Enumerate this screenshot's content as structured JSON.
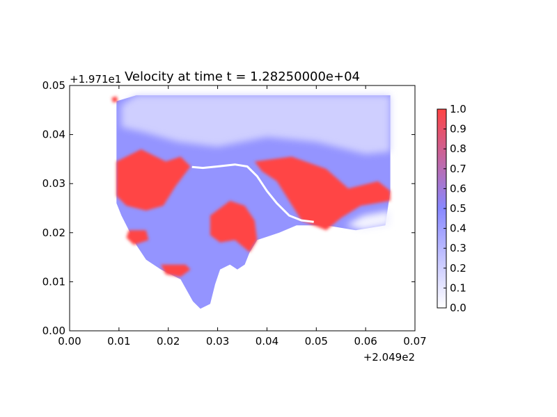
{
  "chart_data": {
    "type": "heatmap",
    "title": "Velocity at time t = 1.28250000e+04",
    "x_offset_label": "+2.049e2",
    "y_offset_label": "+1.971e1",
    "xlim": [
      0.0,
      0.07
    ],
    "ylim": [
      0.0,
      0.05
    ],
    "x_ticks": [
      "0.00",
      "0.01",
      "0.02",
      "0.03",
      "0.04",
      "0.05",
      "0.06",
      "0.07"
    ],
    "y_ticks": [
      "0.00",
      "0.01",
      "0.02",
      "0.03",
      "0.04",
      "0.05"
    ],
    "x_tick_values": [
      0.0,
      0.01,
      0.02,
      0.03,
      0.04,
      0.05,
      0.06,
      0.07
    ],
    "y_tick_values": [
      0.0,
      0.01,
      0.02,
      0.03,
      0.04,
      0.05
    ],
    "colorbar": {
      "min": 0.0,
      "max": 1.0,
      "ticks": [
        "0.0",
        "0.1",
        "0.2",
        "0.3",
        "0.4",
        "0.5",
        "0.6",
        "0.7",
        "0.8",
        "0.9",
        "1.0"
      ],
      "tick_values": [
        0.0,
        0.1,
        0.2,
        0.3,
        0.4,
        0.5,
        0.6,
        0.7,
        0.8,
        0.9,
        1.0
      ],
      "colors": [
        "#ffffff",
        "#8888ff",
        "#ff4444"
      ]
    },
    "domain_outline": [
      [
        0.0095,
        0.0468
      ],
      [
        0.0135,
        0.048
      ],
      [
        0.065,
        0.048
      ],
      [
        0.065,
        0.0285
      ],
      [
        0.064,
        0.0215
      ],
      [
        0.058,
        0.0205
      ],
      [
        0.052,
        0.0215
      ],
      [
        0.046,
        0.0215
      ],
      [
        0.0425,
        0.02
      ],
      [
        0.038,
        0.0185
      ],
      [
        0.0365,
        0.016
      ],
      [
        0.0355,
        0.0135
      ],
      [
        0.034,
        0.0125
      ],
      [
        0.0325,
        0.0135
      ],
      [
        0.0305,
        0.0125
      ],
      [
        0.0295,
        0.0095
      ],
      [
        0.0285,
        0.0055
      ],
      [
        0.0265,
        0.0045
      ],
      [
        0.025,
        0.006
      ],
      [
        0.0225,
        0.0105
      ],
      [
        0.0185,
        0.0125
      ],
      [
        0.0155,
        0.0145
      ],
      [
        0.0135,
        0.0175
      ],
      [
        0.0105,
        0.0235
      ],
      [
        0.0095,
        0.026
      ],
      [
        0.0095,
        0.0305
      ],
      [
        0.0095,
        0.0375
      ],
      [
        0.0095,
        0.0435
      ]
    ],
    "high_velocity_regions": [
      {
        "value": 1.0,
        "polygon": [
          [
            0.0095,
            0.0345
          ],
          [
            0.0145,
            0.037
          ],
          [
            0.0195,
            0.0345
          ],
          [
            0.0225,
            0.0355
          ],
          [
            0.0245,
            0.0335
          ],
          [
            0.0215,
            0.0295
          ],
          [
            0.019,
            0.0255
          ],
          [
            0.0155,
            0.0245
          ],
          [
            0.0115,
            0.0255
          ],
          [
            0.0095,
            0.0275
          ]
        ]
      },
      {
        "value": 1.0,
        "polygon": [
          [
            0.0375,
            0.0345
          ],
          [
            0.045,
            0.0355
          ],
          [
            0.052,
            0.033
          ],
          [
            0.0565,
            0.029
          ],
          [
            0.0625,
            0.0305
          ],
          [
            0.065,
            0.0285
          ],
          [
            0.065,
            0.0265
          ],
          [
            0.059,
            0.0255
          ],
          [
            0.055,
            0.023
          ],
          [
            0.052,
            0.0205
          ],
          [
            0.047,
            0.0225
          ],
          [
            0.0445,
            0.0265
          ],
          [
            0.042,
            0.0305
          ],
          [
            0.039,
            0.0325
          ]
        ]
      },
      {
        "value": 1.0,
        "polygon": [
          [
            0.0285,
            0.0235
          ],
          [
            0.0325,
            0.0265
          ],
          [
            0.0355,
            0.0255
          ],
          [
            0.0375,
            0.0225
          ],
          [
            0.038,
            0.0185
          ],
          [
            0.0365,
            0.016
          ],
          [
            0.0335,
            0.0185
          ],
          [
            0.0305,
            0.018
          ],
          [
            0.0285,
            0.0195
          ]
        ]
      },
      {
        "value": 1.0,
        "polygon": [
          [
            0.0185,
            0.0135
          ],
          [
            0.0235,
            0.0135
          ],
          [
            0.0245,
            0.0125
          ],
          [
            0.0225,
            0.011
          ],
          [
            0.0195,
            0.0115
          ]
        ]
      },
      {
        "value": 1.0,
        "polygon": [
          [
            0.012,
            0.0205
          ],
          [
            0.0155,
            0.0205
          ],
          [
            0.016,
            0.0185
          ],
          [
            0.013,
            0.0175
          ],
          [
            0.0115,
            0.019
          ]
        ]
      },
      {
        "value": 1.0,
        "polygon": [
          [
            0.0085,
            0.0475
          ],
          [
            0.0095,
            0.0478
          ],
          [
            0.0098,
            0.0468
          ],
          [
            0.0088,
            0.0465
          ]
        ]
      }
    ],
    "low_velocity_regions": [
      {
        "value": 0.2,
        "polygon": [
          [
            0.0135,
            0.048
          ],
          [
            0.065,
            0.048
          ],
          [
            0.065,
            0.0365
          ],
          [
            0.06,
            0.036
          ],
          [
            0.05,
            0.0385
          ],
          [
            0.04,
            0.0395
          ],
          [
            0.03,
            0.0375
          ],
          [
            0.022,
            0.0385
          ],
          [
            0.015,
            0.0405
          ],
          [
            0.0105,
            0.0415
          ],
          [
            0.0105,
            0.046
          ]
        ]
      },
      {
        "value": 0.05,
        "polygon": [
          [
            0.0595,
            0.0235
          ],
          [
            0.065,
            0.0245
          ],
          [
            0.065,
            0.0215
          ],
          [
            0.0595,
            0.0205
          ],
          [
            0.056,
            0.0215
          ]
        ]
      }
    ],
    "streamline": [
      [
        0.0248,
        0.0334
      ],
      [
        0.027,
        0.0332
      ],
      [
        0.03,
        0.0335
      ],
      [
        0.0335,
        0.0339
      ],
      [
        0.036,
        0.0335
      ],
      [
        0.038,
        0.0315
      ],
      [
        0.04,
        0.0285
      ],
      [
        0.042,
        0.026
      ],
      [
        0.0445,
        0.0235
      ],
      [
        0.047,
        0.0225
      ],
      [
        0.0495,
        0.0222
      ]
    ]
  }
}
